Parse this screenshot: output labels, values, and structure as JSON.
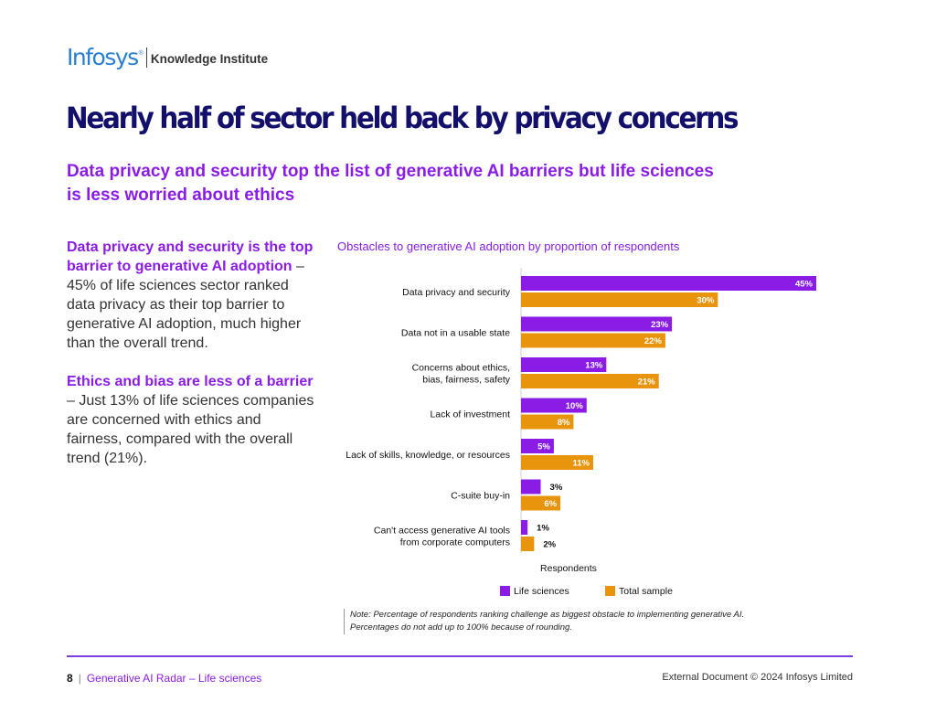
{
  "logo": {
    "brand": "Infosys",
    "registered": "®",
    "sub": "Knowledge Institute"
  },
  "title": "Nearly half of sector held back by privacy concerns",
  "subtitle": "Data privacy and security top the list of generative AI barriers but life sciences is less worried about ethics",
  "sidebar": {
    "p1_highlight": "Data privacy and security is the top barrier to generative AI adoption",
    "p1_text": " – 45% of life sciences sector ranked data privacy as their top barrier to generative AI adoption, much higher than the overall trend.",
    "p2_highlight": "Ethics and bias are less of a barrier",
    "p2_text": " – Just 13% of life sciences companies are concerned with ethics and fairness, compared with the overall trend (21%)."
  },
  "chart_data": {
    "type": "bar",
    "orientation": "horizontal",
    "title": "Obstacles to generative AI adoption by proportion of respondents",
    "xlabel": "Respondents",
    "ylabel": "",
    "xlim": [
      0,
      45
    ],
    "categories": [
      [
        "Data privacy and security"
      ],
      [
        "Data not in a usable state"
      ],
      [
        "Concerns about ethics,",
        "bias, fairness, safety"
      ],
      [
        "Lack of investment"
      ],
      [
        "Lack of skills, knowledge, or resources"
      ],
      [
        "C-suite buy-in"
      ],
      [
        "Can't access generative AI tools",
        "from corporate computers"
      ]
    ],
    "series": [
      {
        "name": "Life sciences",
        "color": "#8a1ce6",
        "values": [
          45,
          23,
          13,
          10,
          5,
          3,
          1
        ],
        "labels": [
          "45%",
          "23%",
          "13%",
          "10%",
          "5%",
          "3%",
          "1%"
        ]
      },
      {
        "name": "Total sample",
        "color": "#e8940c",
        "values": [
          30,
          22,
          21,
          8,
          11,
          6,
          2
        ],
        "labels": [
          "30%",
          "22%",
          "21%",
          "8%",
          "11%",
          "6%",
          "2%"
        ]
      }
    ],
    "legend": "bottom"
  },
  "note": {
    "line1": "Note: Percentage of respondents ranking challenge as biggest obstacle to implementing generative AI.",
    "line2": "Percentages do not add up to 100% because of rounding."
  },
  "footer": {
    "page": "8",
    "separator": "|",
    "doc": "Generative AI Radar – Life sciences",
    "copyright": "External Document © 2024 Infosys Limited"
  }
}
